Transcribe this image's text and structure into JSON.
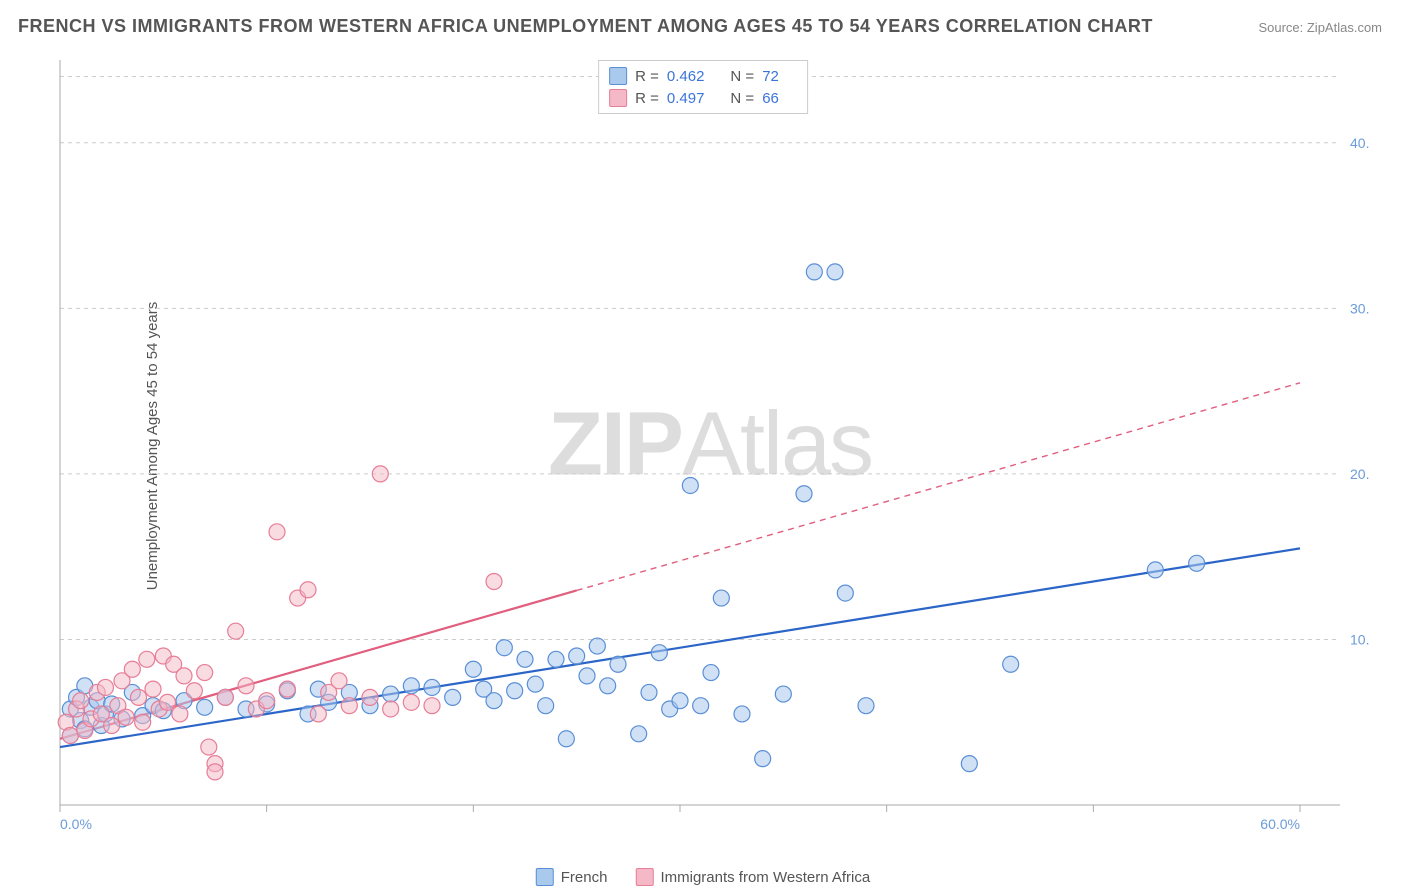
{
  "title": "FRENCH VS IMMIGRANTS FROM WESTERN AFRICA UNEMPLOYMENT AMONG AGES 45 TO 54 YEARS CORRELATION CHART",
  "source": "Source: ZipAtlas.com",
  "ylabel": "Unemployment Among Ages 45 to 54 years",
  "watermark_prefix": "ZIP",
  "watermark_suffix": "Atlas",
  "chart": {
    "type": "scatter",
    "xlim": [
      0,
      60
    ],
    "ylim": [
      0,
      45
    ],
    "xtick_step": 10,
    "ytick_step": 10,
    "grid_color": "#cccccc",
    "axis_color": "#aaaaaa",
    "background_color": "#ffffff",
    "marker_radius": 8,
    "marker_stroke_width": 1.2,
    "trend_line_width": 2.2,
    "x_axis_labels": [
      {
        "pos": 0,
        "label": "0.0%"
      },
      {
        "pos": 60,
        "label": "60.0%"
      }
    ],
    "y_axis_labels": [
      {
        "pos": 10,
        "label": "10.0%"
      },
      {
        "pos": 20,
        "label": "20.0%"
      },
      {
        "pos": 30,
        "label": "30.0%"
      },
      {
        "pos": 40,
        "label": "40.0%"
      }
    ],
    "series": [
      {
        "name": "French",
        "legend_label": "French",
        "fill": "#a9c9ed",
        "stroke": "#5a8fd6",
        "fill_opacity": 0.55,
        "R": "0.462",
        "N": "72",
        "trend": {
          "x1": 0,
          "y1": 3.5,
          "x2": 60,
          "y2": 15.5,
          "solid_until_x": 60,
          "color": "#2b65c7"
        },
        "points": [
          [
            0.5,
            5.8
          ],
          [
            0.5,
            4.2
          ],
          [
            0.8,
            6.5
          ],
          [
            1,
            5.1
          ],
          [
            1.2,
            4.6
          ],
          [
            1.2,
            7.2
          ],
          [
            1.5,
            5.9
          ],
          [
            1.8,
            6.3
          ],
          [
            2,
            4.8
          ],
          [
            2.2,
            5.5
          ],
          [
            2.5,
            6.1
          ],
          [
            3,
            5.2
          ],
          [
            3.5,
            6.8
          ],
          [
            4,
            5.4
          ],
          [
            4.5,
            6.0
          ],
          [
            5,
            5.7
          ],
          [
            6,
            6.3
          ],
          [
            7,
            5.9
          ],
          [
            8,
            6.5
          ],
          [
            9,
            5.8
          ],
          [
            10,
            6.1
          ],
          [
            11,
            6.9
          ],
          [
            12,
            5.5
          ],
          [
            12.5,
            7.0
          ],
          [
            13,
            6.2
          ],
          [
            14,
            6.8
          ],
          [
            15,
            6.0
          ],
          [
            16,
            6.7
          ],
          [
            17,
            7.2
          ],
          [
            18,
            7.1
          ],
          [
            19,
            6.5
          ],
          [
            20,
            8.2
          ],
          [
            20.5,
            7.0
          ],
          [
            21,
            6.3
          ],
          [
            21.5,
            9.5
          ],
          [
            22,
            6.9
          ],
          [
            22.5,
            8.8
          ],
          [
            23,
            7.3
          ],
          [
            23.5,
            6.0
          ],
          [
            24,
            8.8
          ],
          [
            24.5,
            4.0
          ],
          [
            25,
            9.0
          ],
          [
            25.5,
            7.8
          ],
          [
            26,
            9.6
          ],
          [
            26.5,
            7.2
          ],
          [
            27,
            8.5
          ],
          [
            28,
            4.3
          ],
          [
            28.5,
            6.8
          ],
          [
            29,
            9.2
          ],
          [
            29.5,
            5.8
          ],
          [
            30,
            6.3
          ],
          [
            30.5,
            19.3
          ],
          [
            31,
            6.0
          ],
          [
            31.5,
            8.0
          ],
          [
            32,
            12.5
          ],
          [
            33,
            5.5
          ],
          [
            34,
            2.8
          ],
          [
            35,
            6.7
          ],
          [
            36,
            18.8
          ],
          [
            38,
            12.8
          ],
          [
            39,
            6.0
          ],
          [
            44,
            2.5
          ],
          [
            46,
            8.5
          ],
          [
            36.5,
            32.2
          ],
          [
            37.5,
            32.2
          ],
          [
            53,
            14.2
          ],
          [
            55,
            14.6
          ]
        ]
      },
      {
        "name": "Immigrants from Western Africa",
        "legend_label": "Immigrants from Western Africa",
        "fill": "#f4b8c6",
        "stroke": "#e77d96",
        "fill_opacity": 0.5,
        "R": "0.497",
        "N": "66",
        "trend": {
          "x1": 0,
          "y1": 4.0,
          "x2": 60,
          "y2": 25.5,
          "solid_until_x": 25,
          "color": "#e15e7e"
        },
        "points": [
          [
            0.3,
            5.0
          ],
          [
            0.5,
            4.2
          ],
          [
            0.8,
            5.8
          ],
          [
            1,
            6.3
          ],
          [
            1.2,
            4.5
          ],
          [
            1.5,
            5.2
          ],
          [
            1.8,
            6.8
          ],
          [
            2,
            5.5
          ],
          [
            2.2,
            7.1
          ],
          [
            2.5,
            4.8
          ],
          [
            2.8,
            6.0
          ],
          [
            3,
            7.5
          ],
          [
            3.2,
            5.3
          ],
          [
            3.5,
            8.2
          ],
          [
            3.8,
            6.5
          ],
          [
            4,
            5.0
          ],
          [
            4.2,
            8.8
          ],
          [
            4.5,
            7.0
          ],
          [
            4.8,
            5.8
          ],
          [
            5,
            9.0
          ],
          [
            5.2,
            6.2
          ],
          [
            5.5,
            8.5
          ],
          [
            5.8,
            5.5
          ],
          [
            6,
            7.8
          ],
          [
            6.5,
            6.9
          ],
          [
            7,
            8.0
          ],
          [
            7.2,
            3.5
          ],
          [
            7.5,
            2.5
          ],
          [
            8,
            6.5
          ],
          [
            8.5,
            10.5
          ],
          [
            9,
            7.2
          ],
          [
            9.5,
            5.8
          ],
          [
            10,
            6.3
          ],
          [
            10.5,
            16.5
          ],
          [
            11,
            7.0
          ],
          [
            11.5,
            12.5
          ],
          [
            12,
            13.0
          ],
          [
            12.5,
            5.5
          ],
          [
            13,
            6.8
          ],
          [
            13.5,
            7.5
          ],
          [
            14,
            6.0
          ],
          [
            15,
            6.5
          ],
          [
            15.5,
            20.0
          ],
          [
            16,
            5.8
          ],
          [
            17,
            6.2
          ],
          [
            18,
            6.0
          ],
          [
            21,
            13.5
          ],
          [
            7.5,
            2.0
          ]
        ]
      }
    ]
  },
  "legend_stats": {
    "R_label": "R =",
    "N_label": "N ="
  }
}
